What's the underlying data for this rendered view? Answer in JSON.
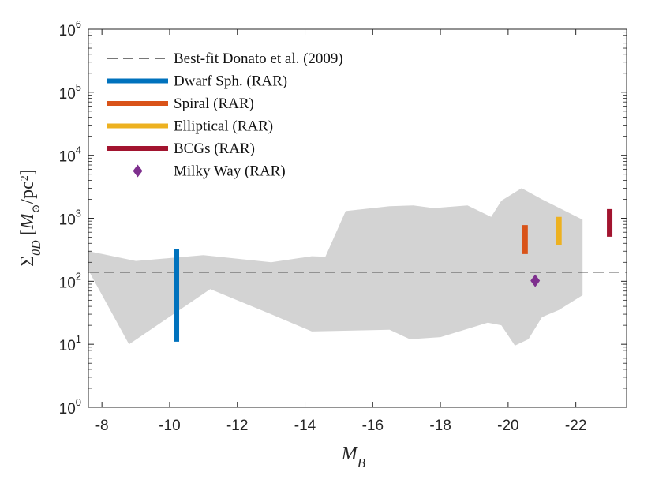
{
  "chart_data": {
    "type": "scatter",
    "xlabel": "M_B",
    "ylabel": "Σ0D [M⊙/pc²]",
    "xlim": [
      -7.6,
      -23.5
    ],
    "ylim": [
      1,
      1000000
    ],
    "yscale": "log",
    "x_reversed": true,
    "x_ticks": [
      -8,
      -10,
      -12,
      -14,
      -16,
      -18,
      -20,
      -22
    ],
    "x_tick_labels": [
      "-8",
      "-10",
      "-12",
      "-14",
      "-16",
      "-18",
      "-20",
      "-22"
    ],
    "y_ticks": [
      1,
      10,
      100,
      1000,
      10000,
      100000,
      1000000
    ],
    "y_tick_base": "10",
    "y_tick_exponents": [
      "0",
      "1",
      "2",
      "3",
      "4",
      "5",
      "6"
    ],
    "grid": false,
    "legend_position": "top-left",
    "series": [
      {
        "name": "Best-fit Donato et al. (2009)",
        "kind": "hline",
        "color": "#262626",
        "y": 140
      },
      {
        "name": "Dwarf Sph. (RAR)",
        "kind": "vbar",
        "color": "#0072BD",
        "x": -10.2,
        "y_range": [
          11,
          330
        ]
      },
      {
        "name": "Spiral (RAR)",
        "kind": "vbar",
        "color": "#D95319",
        "x": -20.5,
        "y_range": [
          270,
          780
        ]
      },
      {
        "name": "Elliptical (RAR)",
        "kind": "vbar",
        "color": "#EDB120",
        "x": -21.5,
        "y_range": [
          380,
          1050
        ]
      },
      {
        "name": "BCGs (RAR)",
        "kind": "vbar",
        "color": "#A2142F",
        "x": -23,
        "y_range": [
          510,
          1400
        ]
      },
      {
        "name": "Milky Way (RAR)",
        "kind": "marker",
        "color": "#7E2F8E",
        "x": -20.8,
        "y": 102
      }
    ],
    "shaded_region": {
      "color": "#d3d3d3",
      "upper": [
        [
          -7.6,
          300
        ],
        [
          -9,
          210
        ],
        [
          -11,
          260
        ],
        [
          -13,
          200
        ],
        [
          -14.2,
          250
        ],
        [
          -14.6,
          245
        ],
        [
          -15.2,
          1300
        ],
        [
          -16.5,
          1550
        ],
        [
          -17.2,
          1600
        ],
        [
          -17.8,
          1450
        ],
        [
          -18.8,
          1600
        ],
        [
          -19.5,
          1050
        ],
        [
          -19.8,
          1900
        ],
        [
          -20.4,
          3000
        ],
        [
          -21,
          2000
        ],
        [
          -22.2,
          950
        ]
      ],
      "lower": [
        [
          -22.2,
          60
        ],
        [
          -21.5,
          35
        ],
        [
          -21,
          27
        ],
        [
          -20.6,
          12
        ],
        [
          -20.2,
          9.5
        ],
        [
          -19.8,
          20
        ],
        [
          -19.4,
          22
        ],
        [
          -18,
          13
        ],
        [
          -17.1,
          12
        ],
        [
          -16.5,
          17
        ],
        [
          -14.2,
          16
        ],
        [
          -13,
          30
        ],
        [
          -11.2,
          75
        ],
        [
          -8.8,
          10
        ],
        [
          -7.6,
          150
        ]
      ]
    }
  }
}
